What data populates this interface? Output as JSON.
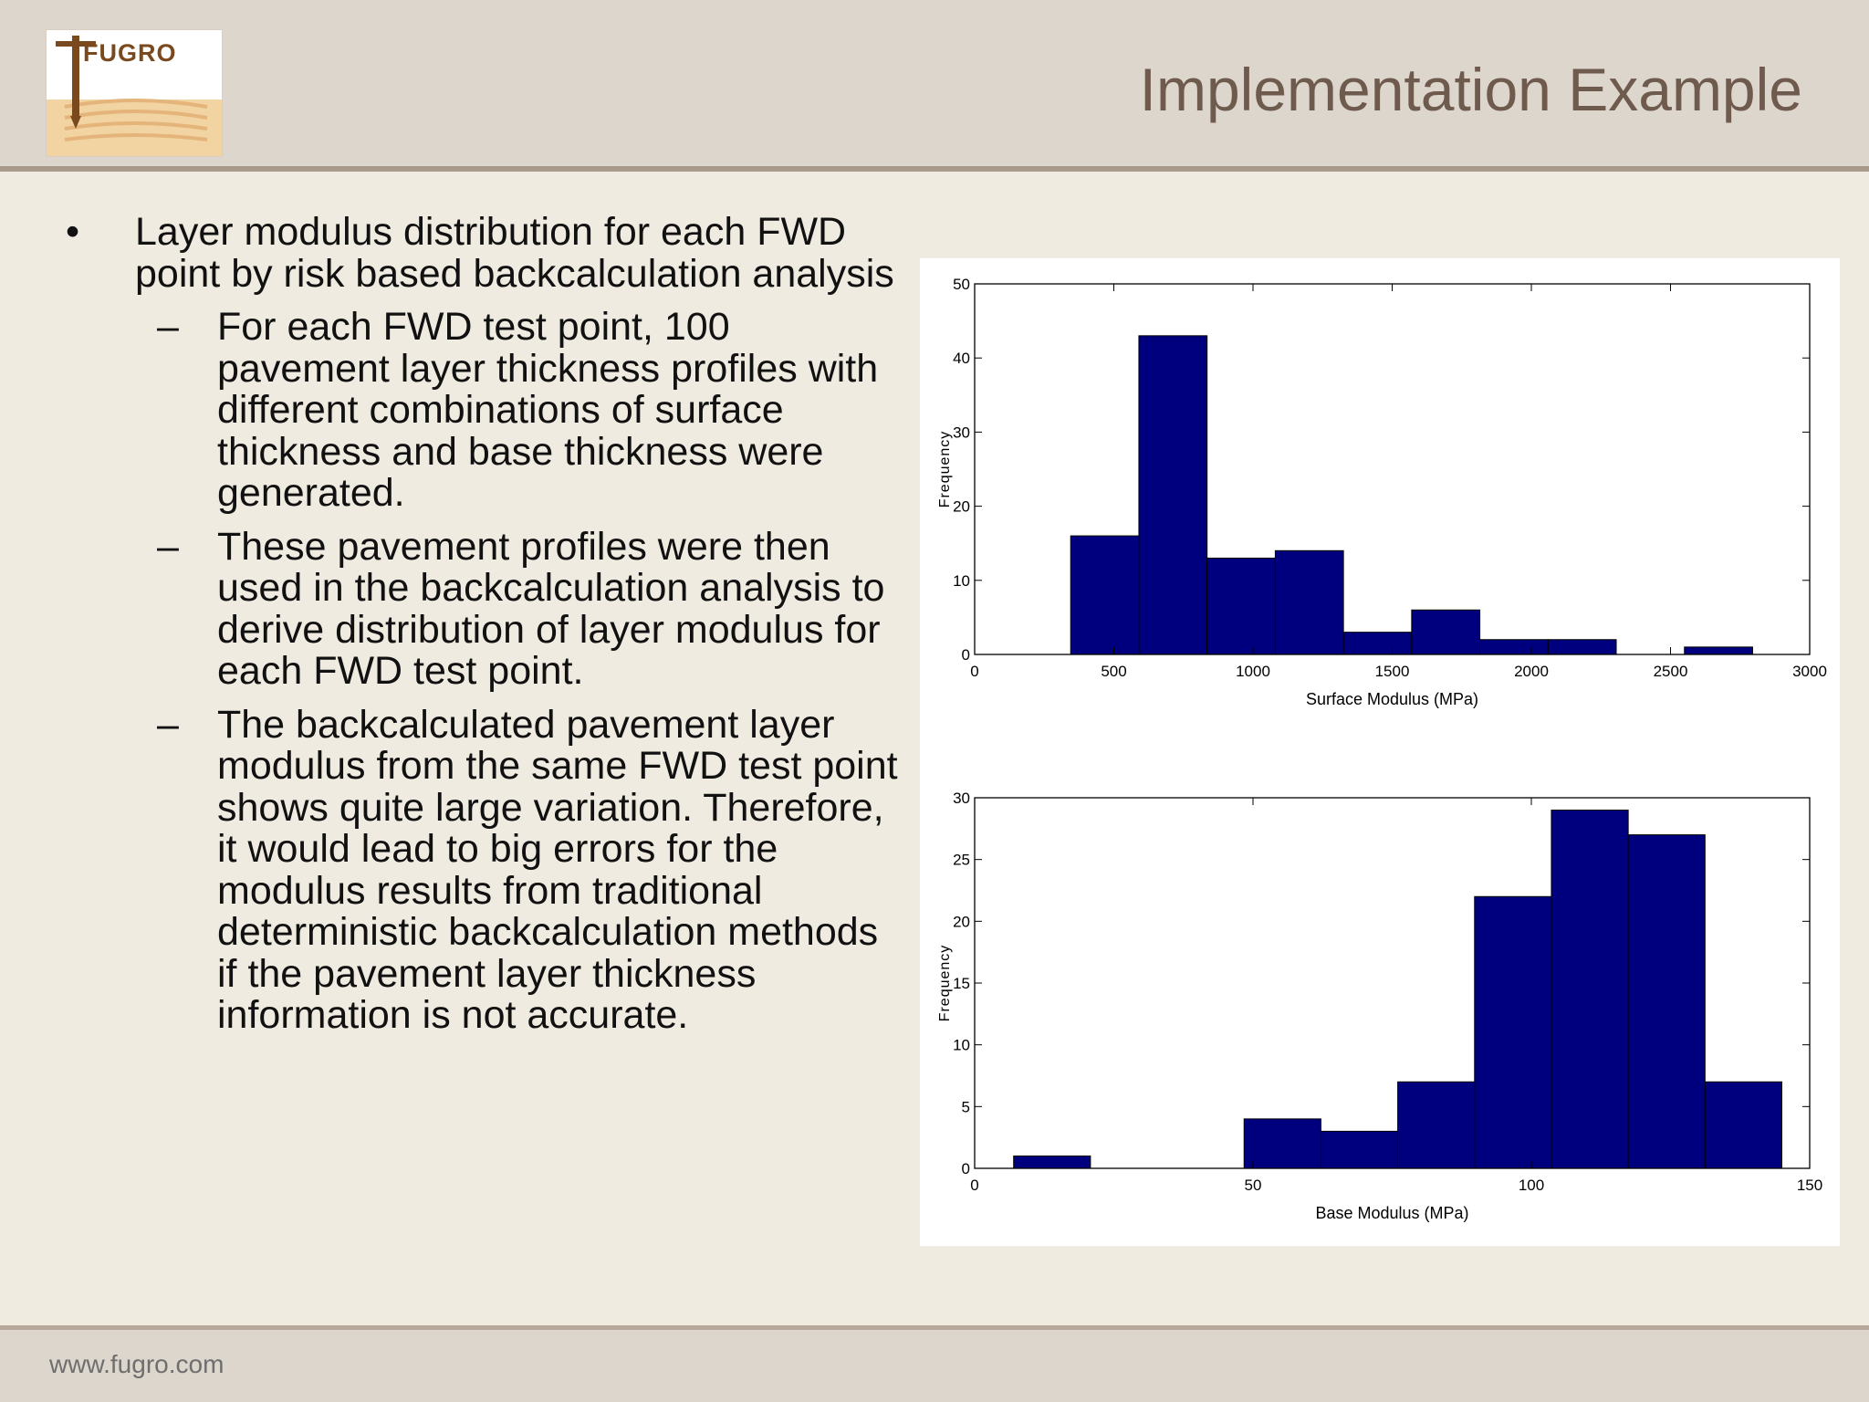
{
  "slide": {
    "title": "Implementation Example",
    "logo_text": "FUGRO",
    "footer_url": "www.fugro.com",
    "accent_color": "#6f5a4e",
    "logo_color": "#7a4a1e"
  },
  "content": {
    "bullet": "Layer modulus distribution for each FWD point by risk based backcalculation analysis",
    "sub_bullets": [
      "For each FWD test point, 100 pavement layer thickness profiles with different combinations of surface thickness and base thickness were generated.",
      "These pavement profiles were then used in the backcalculation analysis to derive distribution of layer modulus for each FWD test point.",
      "The backcalculated pavement layer modulus from the same FWD test point shows quite large variation. Therefore, it would lead to big errors for the modulus results from traditional deterministic backcalculation methods if the pavement layer thickness information is not accurate."
    ]
  },
  "chart_data": [
    {
      "type": "bar",
      "title": "",
      "xlabel": "Surface Modulus (MPa)",
      "ylabel": "Frequency",
      "xlim": [
        0,
        3000
      ],
      "ylim": [
        0,
        50
      ],
      "xticks": [
        0,
        500,
        1000,
        1500,
        2000,
        2500,
        3000
      ],
      "yticks": [
        0,
        10,
        20,
        30,
        40,
        50
      ],
      "bar_color": "#00007f",
      "bins": [
        {
          "x0": 345,
          "x1": 590,
          "value": 16
        },
        {
          "x0": 590,
          "x1": 835,
          "value": 43
        },
        {
          "x0": 835,
          "x1": 1080,
          "value": 13
        },
        {
          "x0": 1080,
          "x1": 1325,
          "value": 14
        },
        {
          "x0": 1325,
          "x1": 1570,
          "value": 3
        },
        {
          "x0": 1570,
          "x1": 1815,
          "value": 6
        },
        {
          "x0": 1815,
          "x1": 2060,
          "value": 2
        },
        {
          "x0": 2060,
          "x1": 2305,
          "value": 2
        },
        {
          "x0": 2305,
          "x1": 2550,
          "value": 0
        },
        {
          "x0": 2550,
          "x1": 2795,
          "value": 1
        }
      ]
    },
    {
      "type": "bar",
      "title": "",
      "xlabel": "Base Modulus (MPa)",
      "ylabel": "Frequency",
      "xlim": [
        0,
        150
      ],
      "ylim": [
        0,
        30
      ],
      "xticks": [
        0,
        50,
        100,
        150
      ],
      "yticks": [
        0,
        5,
        10,
        15,
        20,
        25,
        30
      ],
      "bar_color": "#00007f",
      "bins": [
        {
          "x0": 7,
          "x1": 20.8,
          "value": 1
        },
        {
          "x0": 20.8,
          "x1": 34.6,
          "value": 0
        },
        {
          "x0": 34.6,
          "x1": 48.4,
          "value": 0
        },
        {
          "x0": 48.4,
          "x1": 62.2,
          "value": 4
        },
        {
          "x0": 62.2,
          "x1": 76,
          "value": 3
        },
        {
          "x0": 76,
          "x1": 89.8,
          "value": 7
        },
        {
          "x0": 89.8,
          "x1": 103.6,
          "value": 22
        },
        {
          "x0": 103.6,
          "x1": 117.4,
          "value": 29
        },
        {
          "x0": 117.4,
          "x1": 131.2,
          "value": 27
        },
        {
          "x0": 131.2,
          "x1": 145,
          "value": 7
        }
      ]
    }
  ]
}
